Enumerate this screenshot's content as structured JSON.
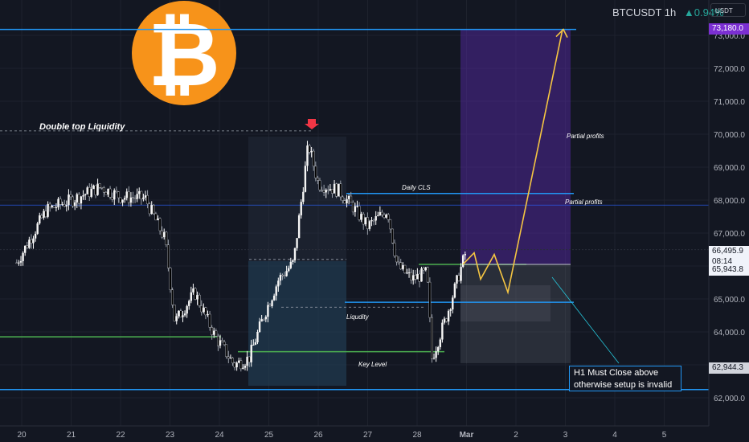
{
  "header": {
    "symbol": "BTCUSDT",
    "interval": "1h",
    "change": "▲0.94%",
    "currency": "USDT"
  },
  "colors": {
    "bg": "#131722",
    "up": "#f5f5f5",
    "down": "#000000",
    "wickUp": "#ffffff",
    "wickDown": "#9aa0aa",
    "accent_blue": "#2196f3",
    "green": "#4caf50",
    "gold": "#f7931a",
    "yellow_path": "#f5c542",
    "purple": "#7b2fd2"
  },
  "logo": {
    "symbol": "₿",
    "icon": "bitcoin-logo-icon"
  },
  "chart_data": {
    "type": "candlestick",
    "x_labels": [
      "20",
      "21",
      "22",
      "23",
      "24",
      "25",
      "26",
      "27",
      "28",
      "Mar",
      "2",
      "3",
      "4",
      "5"
    ],
    "y_ticks": [
      "62,000.0",
      "63,000.0",
      "64,000.0",
      "65,000.0",
      "66,000.0",
      "67,000.0",
      "68,000.0",
      "69,000.0",
      "70,000.0",
      "71,000.0",
      "72,000.0",
      "73,000.0"
    ],
    "ylim": [
      61450,
      74000
    ],
    "price_labels": {
      "target": "73,180.0",
      "current": "66,495.9",
      "countdown": "08:14",
      "level": "65,943.8",
      "low": "62,944.3"
    },
    "annotations": {
      "double_top": "Double top Liquidity",
      "daily_cls": "Daily CLS",
      "partial_profits_1": "Partial profits",
      "partial_profits_2": "Partial profits",
      "liquidity": "Liqudity",
      "key_level": "Key Level",
      "note_line1": "H1 Must Close above",
      "note_line2": "otherwise setup is invalid"
    },
    "levels": {
      "top": 73180,
      "daily_cls": 68200,
      "mid": 66495.9,
      "green_upper": 66050,
      "blue_mid": 64900,
      "key_level": 63400,
      "bottom": 62250,
      "green_left": 63850
    },
    "path_prices": [
      66050,
      66400,
      65600,
      66350,
      65200,
      73180
    ],
    "key_points": [
      {
        "day": 19.9,
        "price": 66100
      },
      {
        "day": 20.2,
        "price": 66900
      },
      {
        "day": 20.5,
        "price": 67700
      },
      {
        "day": 21.0,
        "price": 68000
      },
      {
        "day": 21.6,
        "price": 68400
      },
      {
        "day": 22.0,
        "price": 68100
      },
      {
        "day": 22.5,
        "price": 68050
      },
      {
        "day": 22.9,
        "price": 66800
      },
      {
        "day": 23.1,
        "price": 64300
      },
      {
        "day": 23.5,
        "price": 65200
      },
      {
        "day": 23.9,
        "price": 63900
      },
      {
        "day": 24.3,
        "price": 63000
      },
      {
        "day": 24.6,
        "price": 63200
      },
      {
        "day": 24.9,
        "price": 64500
      },
      {
        "day": 25.2,
        "price": 65600
      },
      {
        "day": 25.5,
        "price": 66100
      },
      {
        "day": 25.8,
        "price": 69700
      },
      {
        "day": 26.0,
        "price": 68500
      },
      {
        "day": 26.4,
        "price": 68300
      },
      {
        "day": 26.7,
        "price": 67800
      },
      {
        "day": 27.0,
        "price": 67200
      },
      {
        "day": 27.4,
        "price": 67700
      },
      {
        "day": 27.6,
        "price": 66000
      },
      {
        "day": 27.9,
        "price": 65600
      },
      {
        "day": 28.2,
        "price": 65800
      },
      {
        "day": 28.3,
        "price": 63200
      },
      {
        "day": 28.6,
        "price": 64500
      },
      {
        "day": 28.9,
        "price": 66000
      },
      {
        "day": 29.0,
        "price": 66500
      }
    ]
  }
}
